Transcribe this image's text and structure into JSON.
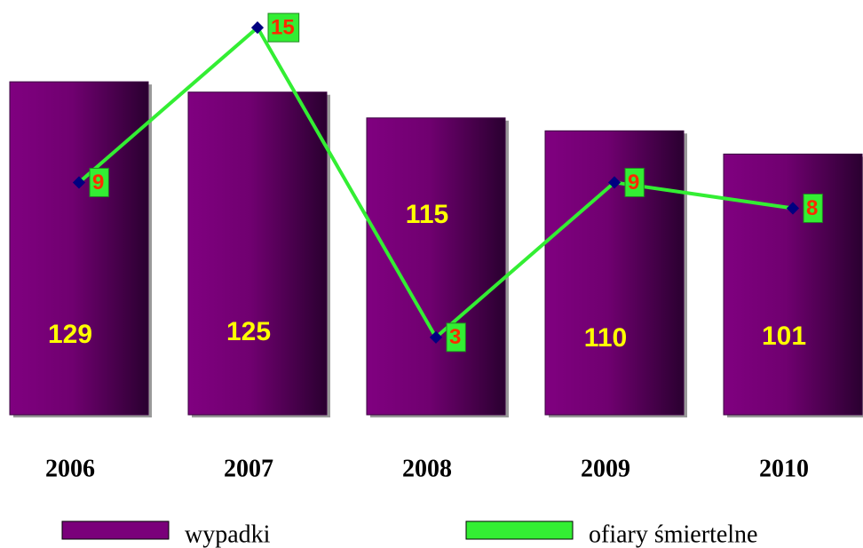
{
  "chart_data": {
    "type": "bar_line",
    "categories": [
      "2006",
      "2007",
      "2008",
      "2009",
      "2010"
    ],
    "series": [
      {
        "name": "wypadki",
        "type": "bar",
        "color": "#7a007a",
        "values": [
          129,
          125,
          115,
          110,
          101
        ]
      },
      {
        "name": "ofiary śmiertelne",
        "type": "line",
        "axis": "y2",
        "color": "#33ee33",
        "values": [
          9,
          15,
          3,
          9,
          8
        ]
      }
    ],
    "ylim": [
      0,
      160
    ],
    "y2lim": [
      0,
      16
    ],
    "grid": false,
    "legend": "bottom"
  }
}
